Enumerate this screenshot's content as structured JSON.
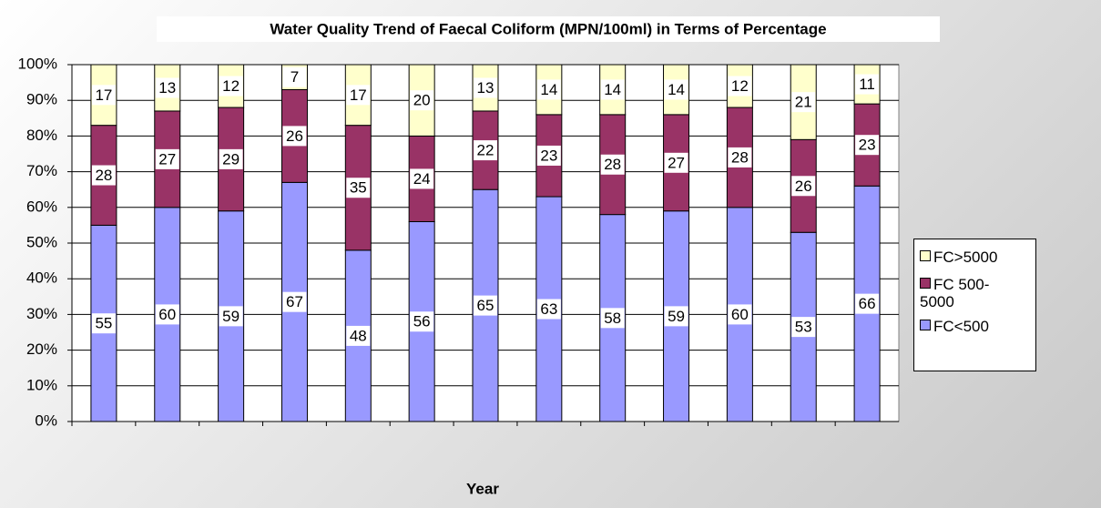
{
  "chart_data": {
    "type": "stacked_bar",
    "title": "Water Quality Trend of Faecal Coliform (MPN/100ml) in Terms of Percentage",
    "x_label": "Year",
    "categories": [
      null,
      null,
      null,
      null,
      null,
      null,
      null,
      null,
      null,
      null,
      null,
      null,
      null
    ],
    "series": [
      {
        "name": "FC<500",
        "color": "#9999ff",
        "values": [
          55,
          60,
          59,
          67,
          48,
          56,
          65,
          63,
          58,
          59,
          60,
          53,
          66
        ]
      },
      {
        "name": "FC 500-5000",
        "color": "#993366",
        "values": [
          28,
          27,
          29,
          26,
          35,
          24,
          22,
          23,
          28,
          27,
          28,
          26,
          23
        ]
      },
      {
        "name": "FC>5000",
        "color": "#ffffcc",
        "values": [
          17,
          13,
          12,
          7,
          17,
          20,
          13,
          14,
          14,
          14,
          12,
          21,
          11
        ]
      }
    ],
    "ylim": [
      0,
      100
    ],
    "yticks": [
      {
        "value": 0,
        "label": "0%"
      },
      {
        "value": 10,
        "label": "10%"
      },
      {
        "value": 20,
        "label": "20%"
      },
      {
        "value": 30,
        "label": "30%"
      },
      {
        "value": 40,
        "label": "40%"
      },
      {
        "value": 50,
        "label": "50%"
      },
      {
        "value": 60,
        "label": "60%"
      },
      {
        "value": 70,
        "label": "70%"
      },
      {
        "value": 80,
        "label": "80%"
      },
      {
        "value": 90,
        "label": "90%"
      },
      {
        "value": 100,
        "label": "100%"
      }
    ],
    "grid": true,
    "legend": "right"
  }
}
